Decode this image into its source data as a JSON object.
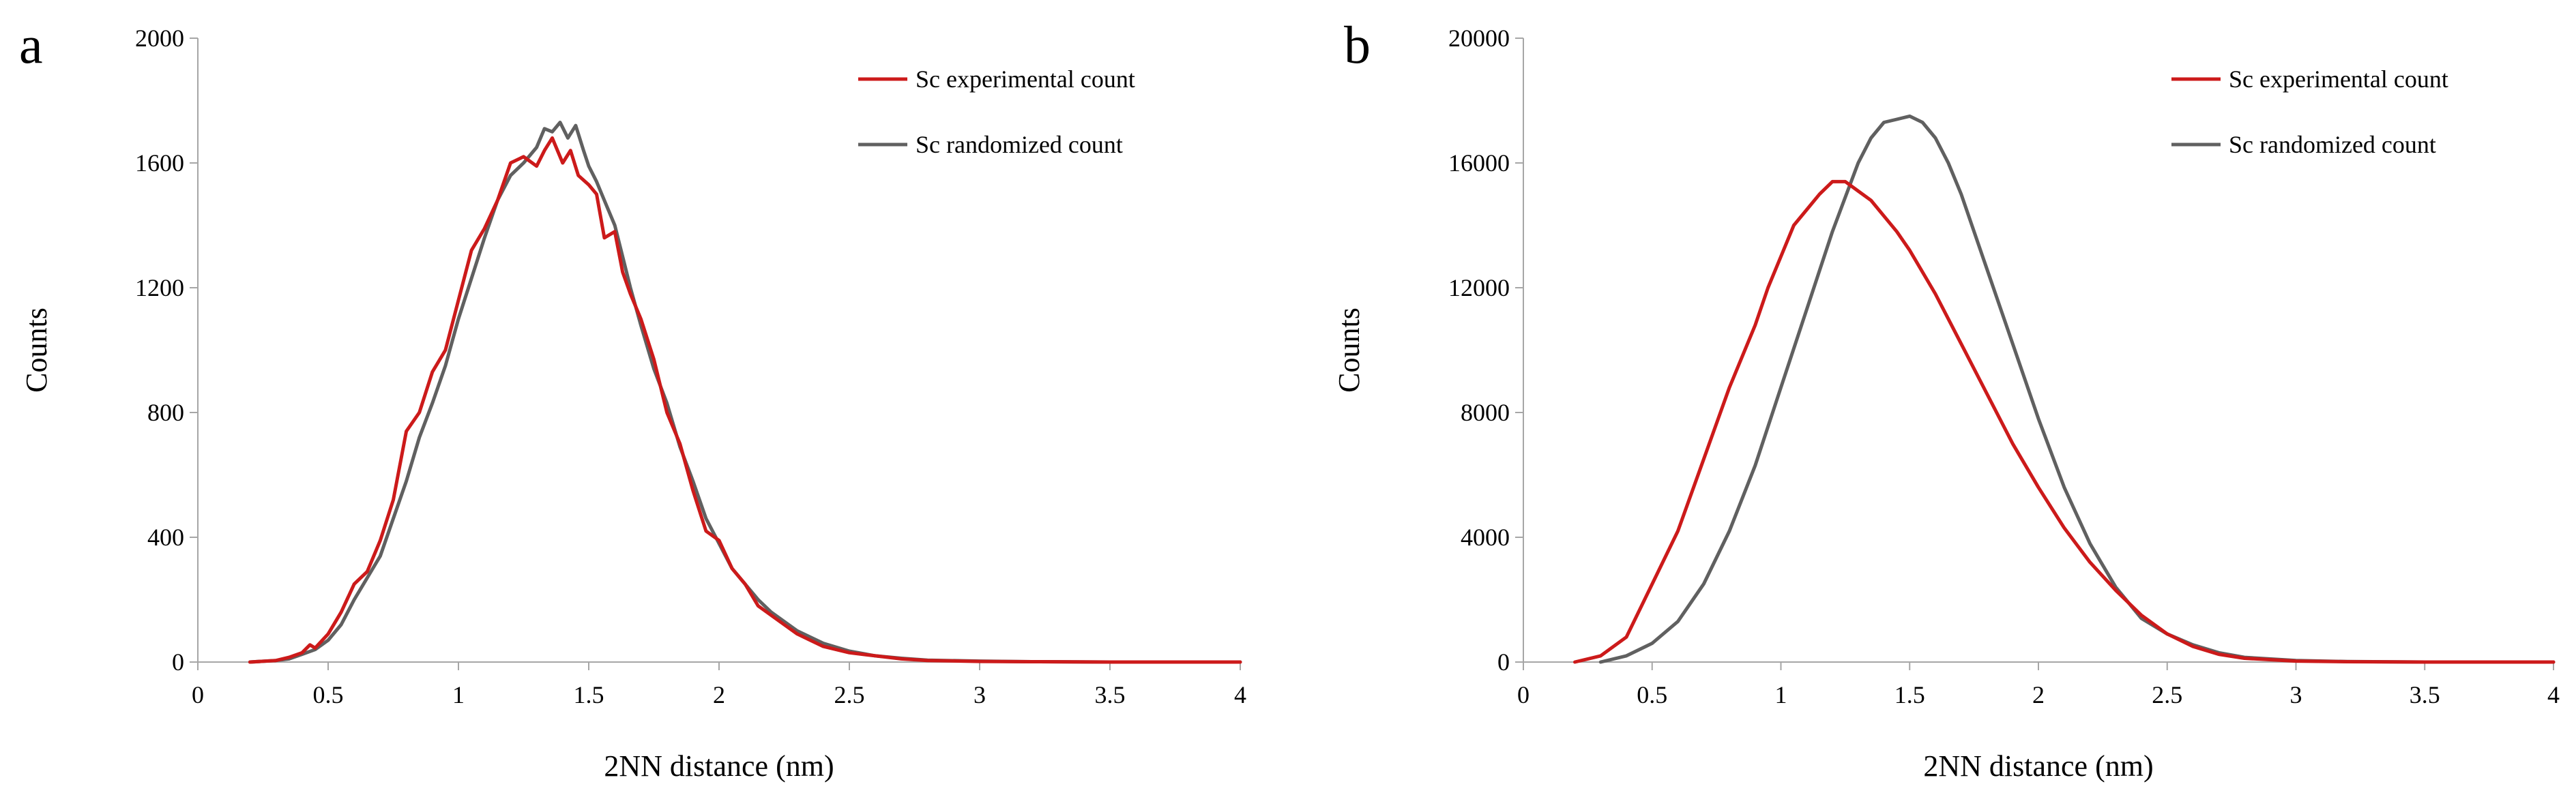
{
  "colors": {
    "experimental": "#cc1a1a",
    "randomized": "#606060",
    "axis": "#a6a6a6"
  },
  "chart_data": [
    {
      "panel_label": "a",
      "type": "line",
      "xlabel": "2NN distance (nm)",
      "ylabel": "Counts",
      "xlim": [
        0,
        4
      ],
      "ylim": [
        0,
        2000
      ],
      "xticks": [
        0,
        0.5,
        1,
        1.5,
        2,
        2.5,
        3,
        3.5,
        4
      ],
      "xtick_labels": [
        "0",
        "0.5",
        "1",
        "1.5",
        "2",
        "2.5",
        "3",
        "3.5",
        "4"
      ],
      "yticks": [
        0,
        400,
        800,
        1200,
        1600,
        2000
      ],
      "ytick_labels": [
        "0",
        "400",
        "800",
        "1200",
        "1600",
        "2000"
      ],
      "legend_position": "top-right",
      "series": [
        {
          "name": "Sc experimental count",
          "color_key": "experimental",
          "x": [
            0.2,
            0.3,
            0.35,
            0.4,
            0.43,
            0.45,
            0.5,
            0.55,
            0.6,
            0.65,
            0.7,
            0.75,
            0.8,
            0.85,
            0.9,
            0.95,
            1.0,
            1.05,
            1.1,
            1.15,
            1.2,
            1.25,
            1.3,
            1.33,
            1.36,
            1.4,
            1.43,
            1.46,
            1.5,
            1.53,
            1.56,
            1.6,
            1.63,
            1.66,
            1.7,
            1.75,
            1.8,
            1.85,
            1.9,
            1.95,
            2.0,
            2.05,
            2.1,
            2.15,
            2.2,
            2.25,
            2.3,
            2.35,
            2.4,
            2.5,
            2.6,
            2.7,
            2.8,
            3.0,
            3.2,
            3.5,
            4.0
          ],
          "y": [
            0,
            5,
            15,
            30,
            55,
            45,
            90,
            160,
            250,
            290,
            390,
            520,
            740,
            800,
            930,
            1000,
            1160,
            1320,
            1390,
            1480,
            1600,
            1620,
            1590,
            1640,
            1680,
            1600,
            1640,
            1560,
            1530,
            1500,
            1360,
            1380,
            1250,
            1180,
            1100,
            970,
            800,
            700,
            550,
            420,
            390,
            300,
            250,
            180,
            150,
            120,
            90,
            70,
            50,
            30,
            20,
            10,
            5,
            2,
            1,
            0,
            0
          ]
        },
        {
          "name": "Sc randomized count",
          "color_key": "randomized",
          "x": [
            0.2,
            0.3,
            0.35,
            0.4,
            0.45,
            0.5,
            0.55,
            0.6,
            0.65,
            0.7,
            0.75,
            0.8,
            0.85,
            0.9,
            0.95,
            1.0,
            1.05,
            1.1,
            1.15,
            1.2,
            1.25,
            1.3,
            1.33,
            1.36,
            1.39,
            1.42,
            1.45,
            1.48,
            1.5,
            1.53,
            1.56,
            1.6,
            1.63,
            1.66,
            1.7,
            1.75,
            1.8,
            1.85,
            1.9,
            1.95,
            2.0,
            2.05,
            2.1,
            2.15,
            2.2,
            2.25,
            2.3,
            2.35,
            2.4,
            2.5,
            2.6,
            2.7,
            2.8,
            3.0,
            3.2,
            3.5,
            4.0
          ],
          "y": [
            0,
            5,
            10,
            25,
            40,
            70,
            120,
            200,
            270,
            340,
            460,
            580,
            720,
            830,
            950,
            1100,
            1230,
            1360,
            1480,
            1560,
            1600,
            1650,
            1710,
            1700,
            1730,
            1680,
            1720,
            1640,
            1590,
            1540,
            1480,
            1400,
            1300,
            1200,
            1080,
            940,
            830,
            690,
            580,
            460,
            380,
            300,
            250,
            200,
            160,
            130,
            100,
            80,
            60,
            35,
            20,
            12,
            6,
            3,
            1,
            0,
            0
          ]
        }
      ]
    },
    {
      "panel_label": "b",
      "type": "line",
      "xlabel": "2NN distance (nm)",
      "ylabel": "Counts",
      "xlim": [
        0,
        4
      ],
      "ylim": [
        0,
        20000
      ],
      "xticks": [
        0,
        0.5,
        1,
        1.5,
        2,
        2.5,
        3,
        3.5,
        4
      ],
      "xtick_labels": [
        "0",
        "0.5",
        "1",
        "1.5",
        "2",
        "2.5",
        "3",
        "3.5",
        "4"
      ],
      "yticks": [
        0,
        4000,
        8000,
        12000,
        16000,
        20000
      ],
      "ytick_labels": [
        "0",
        "4000",
        "8000",
        "12000",
        "16000",
        "20000"
      ],
      "legend_position": "top-right",
      "series": [
        {
          "name": "Sc experimental count",
          "color_key": "experimental",
          "x": [
            0.2,
            0.3,
            0.4,
            0.5,
            0.6,
            0.7,
            0.8,
            0.9,
            0.95,
            1.0,
            1.05,
            1.1,
            1.15,
            1.2,
            1.25,
            1.3,
            1.35,
            1.4,
            1.45,
            1.5,
            1.6,
            1.7,
            1.8,
            1.9,
            2.0,
            2.1,
            2.2,
            2.3,
            2.4,
            2.5,
            2.6,
            2.7,
            2.8,
            3.0,
            3.2,
            3.5,
            4.0
          ],
          "y": [
            0,
            200,
            800,
            2500,
            4200,
            6500,
            8800,
            10800,
            12000,
            13000,
            14000,
            14500,
            15000,
            15400,
            15400,
            15100,
            14800,
            14300,
            13800,
            13200,
            11800,
            10200,
            8600,
            7000,
            5600,
            4300,
            3200,
            2300,
            1500,
            900,
            500,
            250,
            120,
            30,
            10,
            0,
            0
          ]
        },
        {
          "name": "Sc randomized count",
          "color_key": "randomized",
          "x": [
            0.3,
            0.4,
            0.5,
            0.6,
            0.7,
            0.8,
            0.9,
            1.0,
            1.1,
            1.2,
            1.25,
            1.3,
            1.35,
            1.4,
            1.45,
            1.5,
            1.55,
            1.6,
            1.65,
            1.7,
            1.8,
            1.9,
            2.0,
            2.1,
            2.2,
            2.3,
            2.4,
            2.5,
            2.6,
            2.7,
            2.8,
            3.0,
            3.2,
            3.5,
            4.0
          ],
          "y": [
            0,
            200,
            600,
            1300,
            2500,
            4200,
            6300,
            8800,
            11300,
            13800,
            14900,
            16000,
            16800,
            17300,
            17400,
            17500,
            17300,
            16800,
            16000,
            15000,
            12600,
            10200,
            7800,
            5600,
            3800,
            2400,
            1400,
            900,
            550,
            300,
            150,
            50,
            15,
            0,
            0
          ]
        }
      ]
    }
  ]
}
